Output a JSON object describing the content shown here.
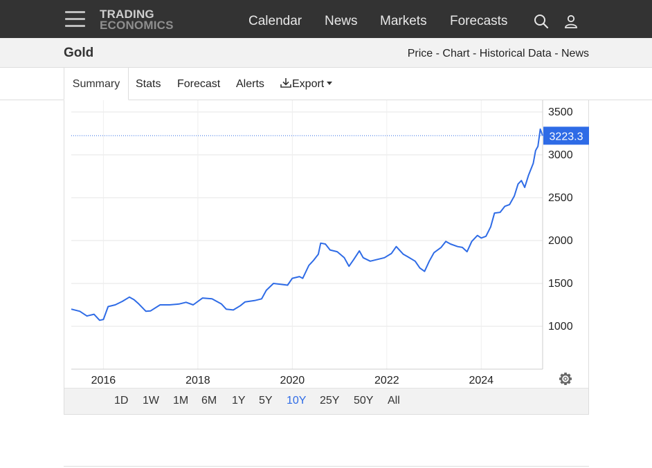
{
  "nav": {
    "logo_line1": "TRADING",
    "logo_line2": "ECONOMICS",
    "links": [
      "Calendar",
      "News",
      "Markets",
      "Forecasts"
    ],
    "icons": [
      "search-icon",
      "user-icon",
      "menu-icon"
    ]
  },
  "header": {
    "title": "Gold",
    "subtitle": "Price - Chart - Historical Data - News"
  },
  "tabs": {
    "summary": "Summary",
    "stats": "Stats",
    "forecast": "Forecast",
    "alerts": "Alerts",
    "export": "Export"
  },
  "ranges": {
    "items": [
      "1D",
      "1W",
      "1M",
      "6M",
      "1Y",
      "5Y",
      "10Y",
      "25Y",
      "50Y",
      "All"
    ],
    "selected": "10Y"
  },
  "colors": {
    "line": "#2e6be6",
    "nav_bg": "#333333",
    "accent": "#2e6be6"
  },
  "chart_data": {
    "type": "line",
    "title": "",
    "xlabel": "",
    "ylabel": "",
    "y_axis_position": "right",
    "ylim": [
      500,
      3600
    ],
    "yticks": [
      1000,
      1500,
      2000,
      2500,
      3000,
      3500
    ],
    "xlim": [
      2015.32,
      2025.3
    ],
    "xticks": [
      2016,
      2018,
      2020,
      2022,
      2024
    ],
    "grid": true,
    "last_value": 3223.3,
    "last_value_label": "3223.3",
    "series": [
      {
        "x": [
          2015.32,
          2015.5,
          2015.65,
          2015.8,
          2015.92,
          2016.0,
          2016.1,
          2016.25,
          2016.4,
          2016.55,
          2016.65,
          2016.75,
          2016.9,
          2017.0,
          2017.2,
          2017.4,
          2017.6,
          2017.75,
          2017.9,
          2018.1,
          2018.3,
          2018.5,
          2018.6,
          2018.75,
          2018.9,
          2019.0,
          2019.2,
          2019.35,
          2019.45,
          2019.6,
          2019.75,
          2019.9,
          2020.0,
          2020.15,
          2020.22,
          2020.35,
          2020.45,
          2020.55,
          2020.6,
          2020.7,
          2020.8,
          2020.95,
          2021.1,
          2021.2,
          2021.3,
          2021.42,
          2021.5,
          2021.65,
          2021.8,
          2021.95,
          2022.1,
          2022.2,
          2022.35,
          2022.45,
          2022.6,
          2022.7,
          2022.8,
          2022.9,
          2023.0,
          2023.15,
          2023.25,
          2023.35,
          2023.5,
          2023.6,
          2023.7,
          2023.8,
          2023.92,
          2024.0,
          2024.1,
          2024.2,
          2024.28,
          2024.4,
          2024.5,
          2024.6,
          2024.7,
          2024.78,
          2024.85,
          2024.92,
          2025.0,
          2025.1,
          2025.15,
          2025.2,
          2025.25,
          2025.3
        ],
        "y": [
          1200,
          1175,
          1120,
          1140,
          1070,
          1080,
          1230,
          1250,
          1290,
          1340,
          1310,
          1260,
          1175,
          1180,
          1250,
          1250,
          1260,
          1280,
          1250,
          1330,
          1320,
          1260,
          1200,
          1190,
          1240,
          1285,
          1300,
          1320,
          1420,
          1500,
          1490,
          1480,
          1560,
          1580,
          1560,
          1710,
          1770,
          1840,
          1970,
          1960,
          1890,
          1870,
          1800,
          1700,
          1780,
          1880,
          1800,
          1760,
          1780,
          1800,
          1850,
          1930,
          1840,
          1810,
          1760,
          1680,
          1640,
          1760,
          1860,
          1920,
          1990,
          1960,
          1930,
          1920,
          1870,
          1990,
          2060,
          2030,
          2050,
          2160,
          2320,
          2330,
          2400,
          2420,
          2520,
          2660,
          2700,
          2620,
          2760,
          2900,
          3050,
          3100,
          3300,
          3223.3
        ]
      }
    ]
  }
}
